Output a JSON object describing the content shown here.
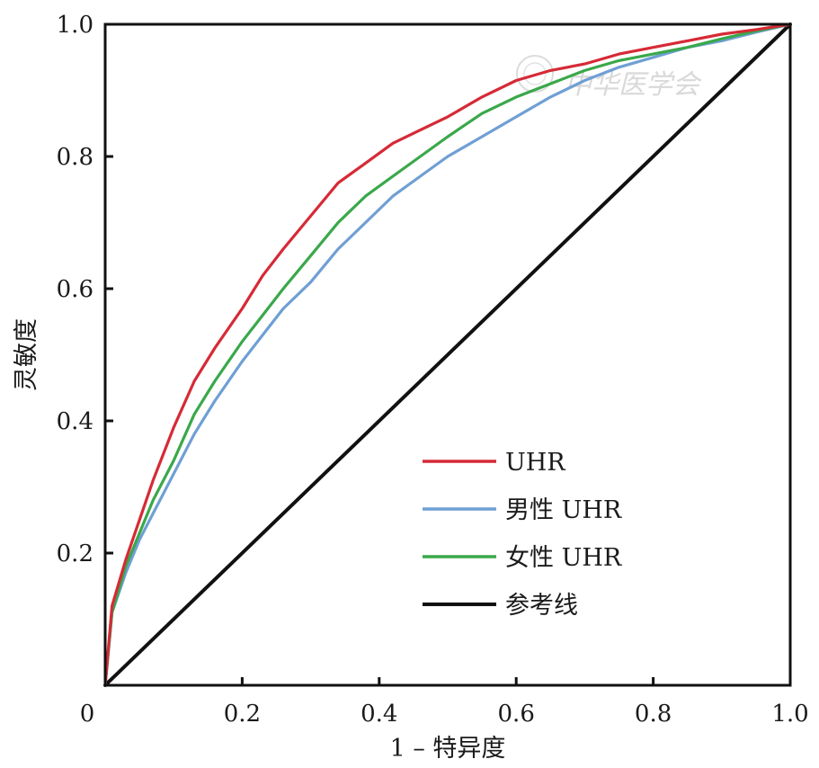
{
  "chart_data": {
    "type": "line",
    "title": "",
    "xlabel": "1 – 特异度",
    "ylabel": "灵敏度",
    "xlim": [
      0,
      1
    ],
    "ylim": [
      0,
      1
    ],
    "x_ticks": [
      0,
      0.2,
      0.4,
      0.6,
      0.8,
      1.0
    ],
    "x_tick_labels": [
      "0",
      "0.2",
      "0.4",
      "0.6",
      "0.8",
      "1.0"
    ],
    "y_ticks": [
      0.2,
      0.4,
      0.6,
      0.8,
      1.0
    ],
    "y_tick_labels": [
      "0.2",
      "0.4",
      "0.6",
      "0.8",
      "1.0"
    ],
    "grid": false,
    "legend_position": "lower-right",
    "series": [
      {
        "name": "UHR",
        "color": "#d62a36",
        "x": [
          0,
          0.01,
          0.03,
          0.05,
          0.07,
          0.1,
          0.13,
          0.16,
          0.2,
          0.23,
          0.26,
          0.3,
          0.34,
          0.38,
          0.42,
          0.46,
          0.5,
          0.55,
          0.6,
          0.65,
          0.7,
          0.75,
          0.8,
          0.85,
          0.9,
          0.95,
          1.0
        ],
        "y": [
          0,
          0.12,
          0.19,
          0.25,
          0.31,
          0.39,
          0.46,
          0.51,
          0.57,
          0.62,
          0.66,
          0.71,
          0.76,
          0.79,
          0.82,
          0.84,
          0.86,
          0.89,
          0.915,
          0.93,
          0.94,
          0.955,
          0.965,
          0.975,
          0.985,
          0.992,
          1.0
        ]
      },
      {
        "name": "男性 UHR",
        "color": "#6f9fd4",
        "x": [
          0,
          0.01,
          0.03,
          0.05,
          0.07,
          0.1,
          0.13,
          0.16,
          0.2,
          0.23,
          0.26,
          0.3,
          0.34,
          0.38,
          0.42,
          0.46,
          0.5,
          0.55,
          0.6,
          0.65,
          0.7,
          0.75,
          0.8,
          0.85,
          0.9,
          0.95,
          1.0
        ],
        "y": [
          0,
          0.11,
          0.17,
          0.22,
          0.26,
          0.32,
          0.38,
          0.43,
          0.49,
          0.53,
          0.57,
          0.61,
          0.66,
          0.7,
          0.74,
          0.77,
          0.8,
          0.83,
          0.86,
          0.89,
          0.915,
          0.935,
          0.95,
          0.965,
          0.975,
          0.988,
          1.0
        ]
      },
      {
        "name": "女性 UHR",
        "color": "#3aa84a",
        "x": [
          0,
          0.01,
          0.03,
          0.05,
          0.07,
          0.1,
          0.13,
          0.16,
          0.2,
          0.23,
          0.26,
          0.3,
          0.34,
          0.38,
          0.42,
          0.46,
          0.5,
          0.55,
          0.6,
          0.65,
          0.7,
          0.75,
          0.8,
          0.85,
          0.9,
          0.95,
          1.0
        ],
        "y": [
          0,
          0.11,
          0.18,
          0.23,
          0.28,
          0.34,
          0.41,
          0.46,
          0.52,
          0.56,
          0.6,
          0.65,
          0.7,
          0.74,
          0.77,
          0.8,
          0.83,
          0.865,
          0.89,
          0.91,
          0.93,
          0.945,
          0.955,
          0.965,
          0.978,
          0.99,
          1.0
        ]
      },
      {
        "name": "参考线",
        "color": "#111111",
        "x": [
          0,
          1
        ],
        "y": [
          0,
          1
        ]
      }
    ]
  },
  "watermark": {
    "text": "中华医学会"
  }
}
